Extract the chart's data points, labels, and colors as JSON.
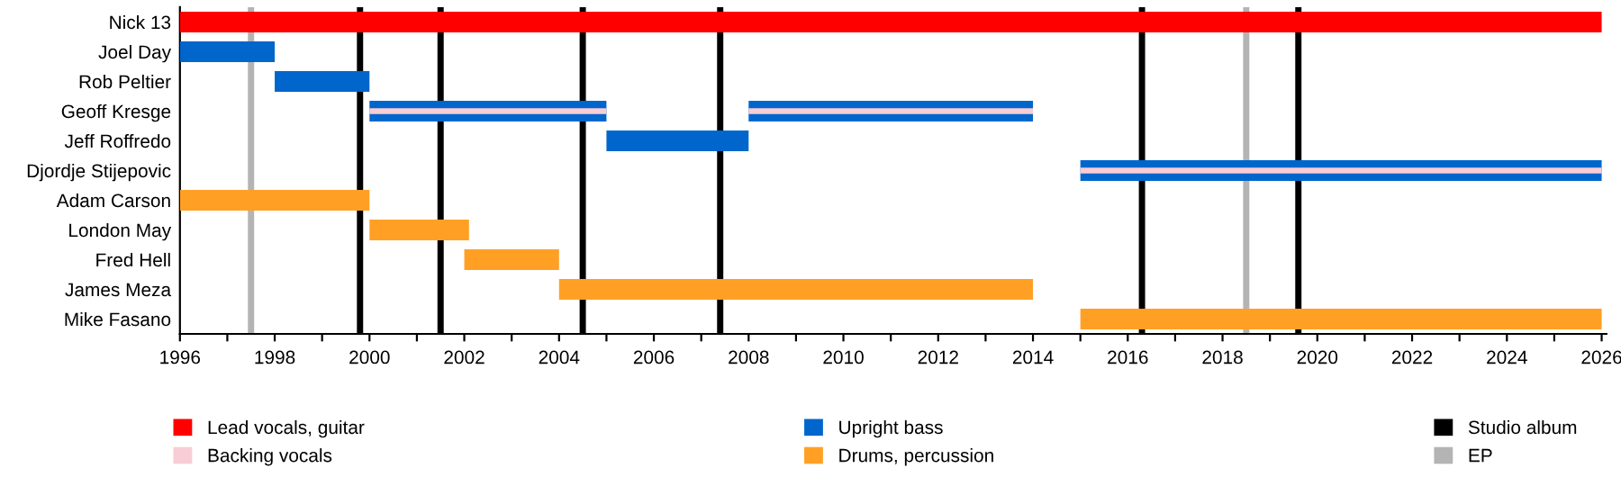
{
  "chart_data": {
    "type": "bar",
    "orientation": "horizontal",
    "categories": [
      "Nick 13",
      "Joel Day",
      "Rob Peltier",
      "Geoff Kresge",
      "Jeff Roffredo",
      "Djordje Stijepovic",
      "Adam Carson",
      "London May",
      "Fred Hell",
      "James Meza",
      "Mike Fasano"
    ],
    "series": [
      {
        "name": "Lead vocals, guitar",
        "color": "#ff0000",
        "base": [
          1996,
          null,
          null,
          null,
          null,
          null,
          null,
          null,
          null,
          null,
          null
        ],
        "values": [
          30.0,
          null,
          null,
          null,
          null,
          null,
          null,
          null,
          null,
          null,
          null
        ]
      },
      {
        "name": "Backing vocals",
        "color": "#f8cdd5",
        "base": [
          null,
          null,
          null,
          2000,
          null,
          2015,
          null,
          null,
          null,
          null,
          null
        ],
        "values": [
          null,
          null,
          null,
          5,
          null,
          11,
          null,
          null,
          null,
          null,
          null
        ]
      },
      {
        "name": "Upright bass",
        "color": "#0066cc",
        "base": [
          null,
          1996,
          1998,
          2000,
          2005,
          2015,
          null,
          null,
          null,
          null,
          null
        ],
        "values": [
          null,
          2,
          2,
          5,
          3,
          11,
          null,
          null,
          null,
          null,
          null
        ]
      },
      {
        "color": "#f8cdd5",
        "base": [
          null,
          null,
          null,
          2008,
          null,
          null,
          null,
          null,
          null,
          null,
          null
        ],
        "values": [
          null,
          null,
          null,
          6,
          null,
          null,
          null,
          null,
          null,
          null,
          null
        ]
      },
      {
        "color": "#0066cc",
        "base": [
          null,
          null,
          null,
          2008,
          null,
          null,
          null,
          null,
          null,
          null,
          null
        ],
        "values": [
          null,
          null,
          null,
          6,
          null,
          null,
          null,
          null,
          null,
          null,
          null
        ]
      },
      {
        "name": "Drums, percussion",
        "color": "#ffa025",
        "base": [
          null,
          null,
          null,
          null,
          null,
          null,
          1996,
          2000,
          2002,
          2004,
          2015
        ],
        "values": [
          null,
          null,
          null,
          null,
          null,
          null,
          4,
          2.1,
          2,
          10,
          11
        ]
      }
    ],
    "ref_lines": [
      {
        "axis": "x",
        "value": 1999.8,
        "label": "Studio album",
        "color": "#000000"
      },
      {
        "axis": "x",
        "value": 2001.5,
        "color": "#000000"
      },
      {
        "axis": "x",
        "value": 2004.5,
        "color": "#000000"
      },
      {
        "axis": "x",
        "value": 2007.4,
        "color": "#000000"
      },
      {
        "axis": "x",
        "value": 2016.3,
        "color": "#000000"
      },
      {
        "axis": "x",
        "value": 2019.6,
        "color": "#000000"
      },
      {
        "axis": "x",
        "value": 1997.5,
        "label": "EP",
        "color": "#b4b4b4"
      },
      {
        "axis": "x",
        "value": 2018.5,
        "color": "#b4b4b4"
      }
    ],
    "xlim": [
      1996,
      2026.1
    ],
    "xticks": [
      1996,
      {
        "value": 1997,
        "label": null
      },
      1998,
      {
        "value": 1999,
        "label": null
      },
      2000,
      {
        "value": 2001,
        "label": null
      },
      2002,
      {
        "value": 2003,
        "label": null
      },
      2004,
      {
        "value": 2005,
        "label": null
      },
      2006,
      {
        "value": 2007,
        "label": null
      },
      2008,
      {
        "value": 2009,
        "label": null
      },
      2010,
      {
        "value": 2011,
        "label": null
      },
      2012,
      {
        "value": 2013,
        "label": null
      },
      2014,
      {
        "value": 2015,
        "label": null
      },
      2016,
      {
        "value": 2017,
        "label": null
      },
      2018,
      {
        "value": 2019,
        "label": null
      },
      2020,
      {
        "value": 2021,
        "label": null
      },
      2022,
      {
        "value": 2023,
        "label": null
      },
      2024,
      {
        "value": 2025,
        "label": null
      },
      2026
    ],
    "grid": false,
    "legend": "bottom"
  }
}
